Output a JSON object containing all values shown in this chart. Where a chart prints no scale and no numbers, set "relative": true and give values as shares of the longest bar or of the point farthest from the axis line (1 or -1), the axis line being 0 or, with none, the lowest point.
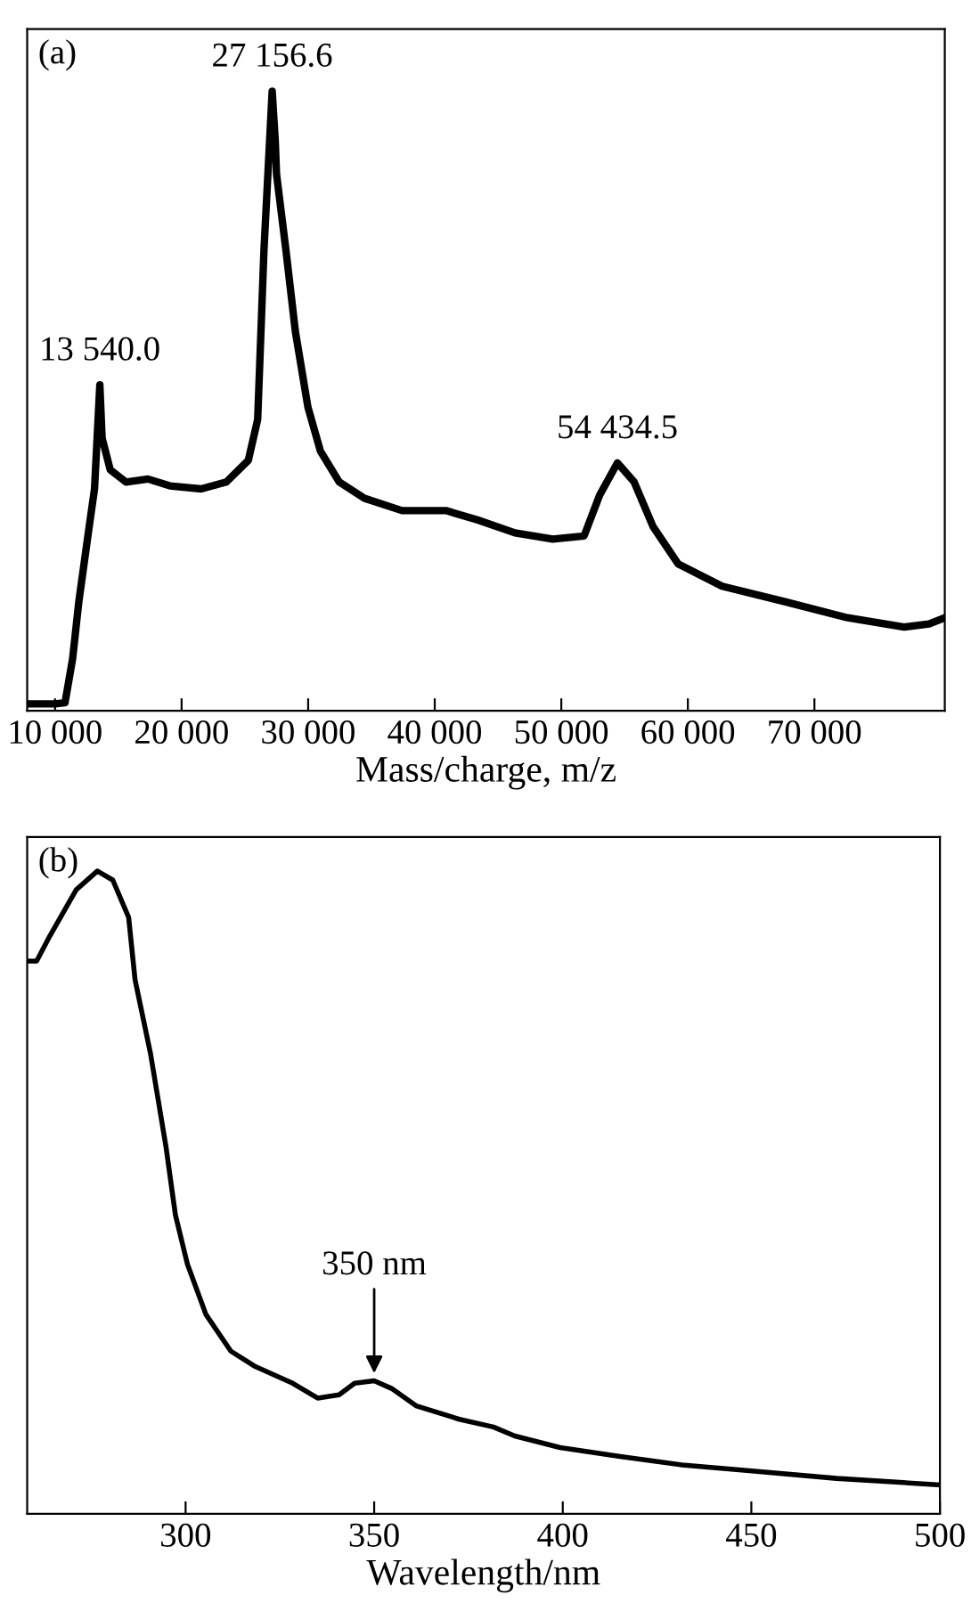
{
  "chart_data": [
    {
      "type": "line",
      "relative": true,
      "xlabel": "Mass/charge, m/z",
      "tick_labels": "x",
      "grid": false,
      "legend": false,
      "xlim": [
        7800,
        80300
      ],
      "xticks": [
        {
          "value": 10000,
          "label": "10 000"
        },
        {
          "value": 20000,
          "label": "20 000"
        },
        {
          "value": 30000,
          "label": "30 000"
        },
        {
          "value": 40000,
          "label": "40 000"
        },
        {
          "value": 50000,
          "label": "50 000"
        },
        {
          "value": 60000,
          "label": "60 000"
        },
        {
          "value": 70000,
          "label": "70 000"
        }
      ],
      "series": [
        {
          "color": "#000000",
          "x": [
            7800,
            10000,
            10790,
            11390,
            11880,
            12630,
            13120,
            13540,
            13720,
            14360,
            15600,
            17340,
            19070,
            21550,
            23530,
            25270,
            26010,
            26510,
            27156.6,
            27400,
            27500,
            28240,
            28990,
            29980,
            30970,
            32460,
            34440,
            37420,
            40890,
            43370,
            46340,
            49320,
            51800,
            53030,
            54434.5,
            55760,
            57250,
            59230,
            62700,
            67660,
            72620,
            77080,
            79060,
            80300
          ],
          "values": [
            0.011,
            0.011,
            0.013,
            0.084,
            0.176,
            0.287,
            0.358,
            0.526,
            0.44,
            0.389,
            0.369,
            0.374,
            0.363,
            0.358,
            0.369,
            0.404,
            0.47,
            0.744,
            1.0,
            0.92,
            0.866,
            0.744,
            0.612,
            0.49,
            0.419,
            0.369,
            0.343,
            0.323,
            0.323,
            0.308,
            0.287,
            0.277,
            0.282,
            0.348,
            0.4,
            0.369,
            0.297,
            0.237,
            0.201,
            0.176,
            0.15,
            0.135,
            0.14,
            0.15
          ]
        }
      ],
      "annotations": [
        "(a)",
        {
          "text": "13 540.0",
          "x": 13540,
          "y": 0.526
        },
        {
          "text": "27 156.6",
          "x": 27156.6,
          "y": 1.0
        },
        {
          "text": "54 434.5",
          "x": 54434.5,
          "y": 0.4
        }
      ]
    },
    {
      "type": "line",
      "relative": true,
      "xlabel": "Wavelength/nm",
      "tick_labels": "x",
      "grid": false,
      "legend": false,
      "xlim": [
        258,
        500
      ],
      "xticks": [
        300,
        350,
        400,
        450,
        500
      ],
      "series": [
        {
          "color": "#000000",
          "x": [
            258,
            260.5,
            264,
            271,
            276.6,
            280.7,
            284.9,
            286.6,
            290.7,
            294.8,
            297.3,
            300.5,
            305.4,
            312,
            318.5,
            328.4,
            335,
            340.7,
            344.8,
            350,
            354.6,
            361.1,
            372.6,
            381.6,
            387.3,
            399.3,
            415.2,
            431.6,
            449.5,
            472.6,
            500
          ],
          "values": [
            0.86,
            0.86,
            0.899,
            0.971,
            1.0,
            0.986,
            0.928,
            0.831,
            0.716,
            0.571,
            0.465,
            0.388,
            0.31,
            0.253,
            0.229,
            0.203,
            0.18,
            0.185,
            0.203,
            0.207,
            0.195,
            0.168,
            0.147,
            0.135,
            0.121,
            0.103,
            0.089,
            0.076,
            0.067,
            0.055,
            0.045
          ]
        }
      ],
      "annotations": [
        "(b)",
        {
          "text": "350 nm",
          "x": 350,
          "y": 0.207
        }
      ]
    }
  ]
}
